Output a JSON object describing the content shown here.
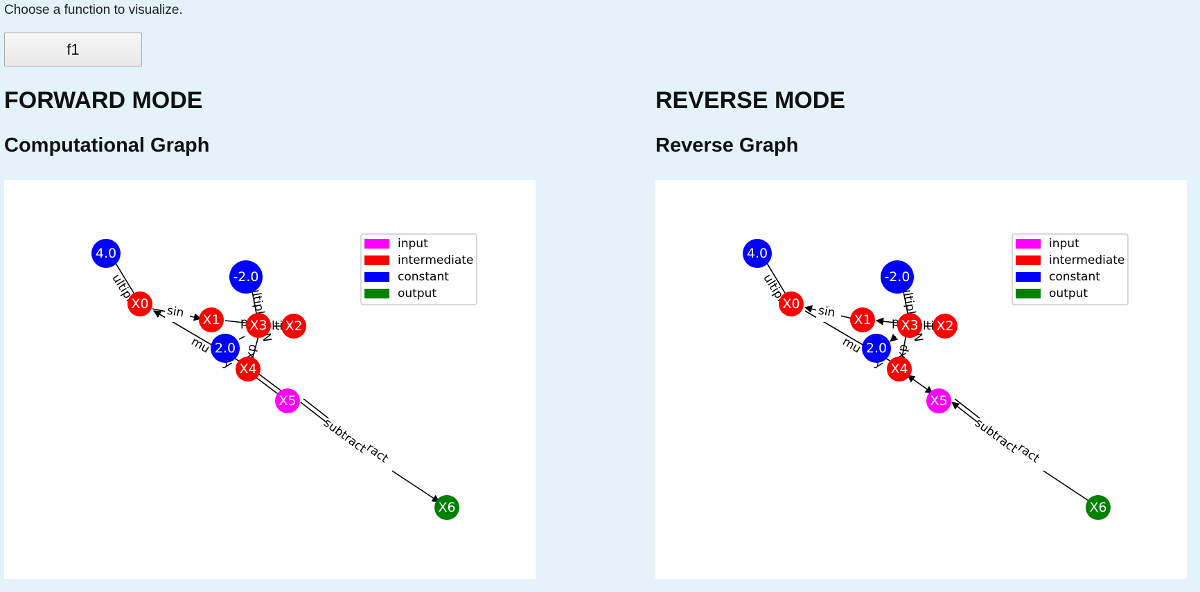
{
  "prompt": "Choose a function to visualize.",
  "function_select": {
    "value": "f1"
  },
  "forward": {
    "mode_title": "FORWARD MODE",
    "graph_title": "Computational Graph"
  },
  "reverse": {
    "mode_title": "REVERSE MODE",
    "graph_title": "Reverse Graph"
  },
  "legend": [
    {
      "label": "input",
      "color": "#ff00ff"
    },
    {
      "label": "intermediate",
      "color": "#ff0000"
    },
    {
      "label": "constant",
      "color": "#0000ff"
    },
    {
      "label": "output",
      "color": "#008000"
    }
  ],
  "colors": {
    "page_background": "#e4f2fa",
    "panel_background": "#ffffff"
  },
  "graph_nodes": [
    {
      "id": "c4",
      "label": "4.0",
      "type": "constant"
    },
    {
      "id": "cm2",
      "label": "-2.0",
      "type": "constant"
    },
    {
      "id": "c2",
      "label": "2.0",
      "type": "constant"
    },
    {
      "id": "X0",
      "label": "X0",
      "type": "intermediate"
    },
    {
      "id": "X1",
      "label": "X1",
      "type": "intermediate"
    },
    {
      "id": "X2",
      "label": "X2",
      "type": "intermediate"
    },
    {
      "id": "X3",
      "label": "X3",
      "type": "intermediate"
    },
    {
      "id": "X4",
      "label": "X4",
      "type": "intermediate"
    },
    {
      "id": "X5",
      "label": "X5",
      "type": "input"
    },
    {
      "id": "X6",
      "label": "X6",
      "type": "output"
    }
  ],
  "edge_labels": [
    "ultipl",
    "sin",
    "ultipl",
    "p",
    "lti",
    "N",
    "mu",
    "y",
    "exp",
    "subtract",
    "ract"
  ]
}
